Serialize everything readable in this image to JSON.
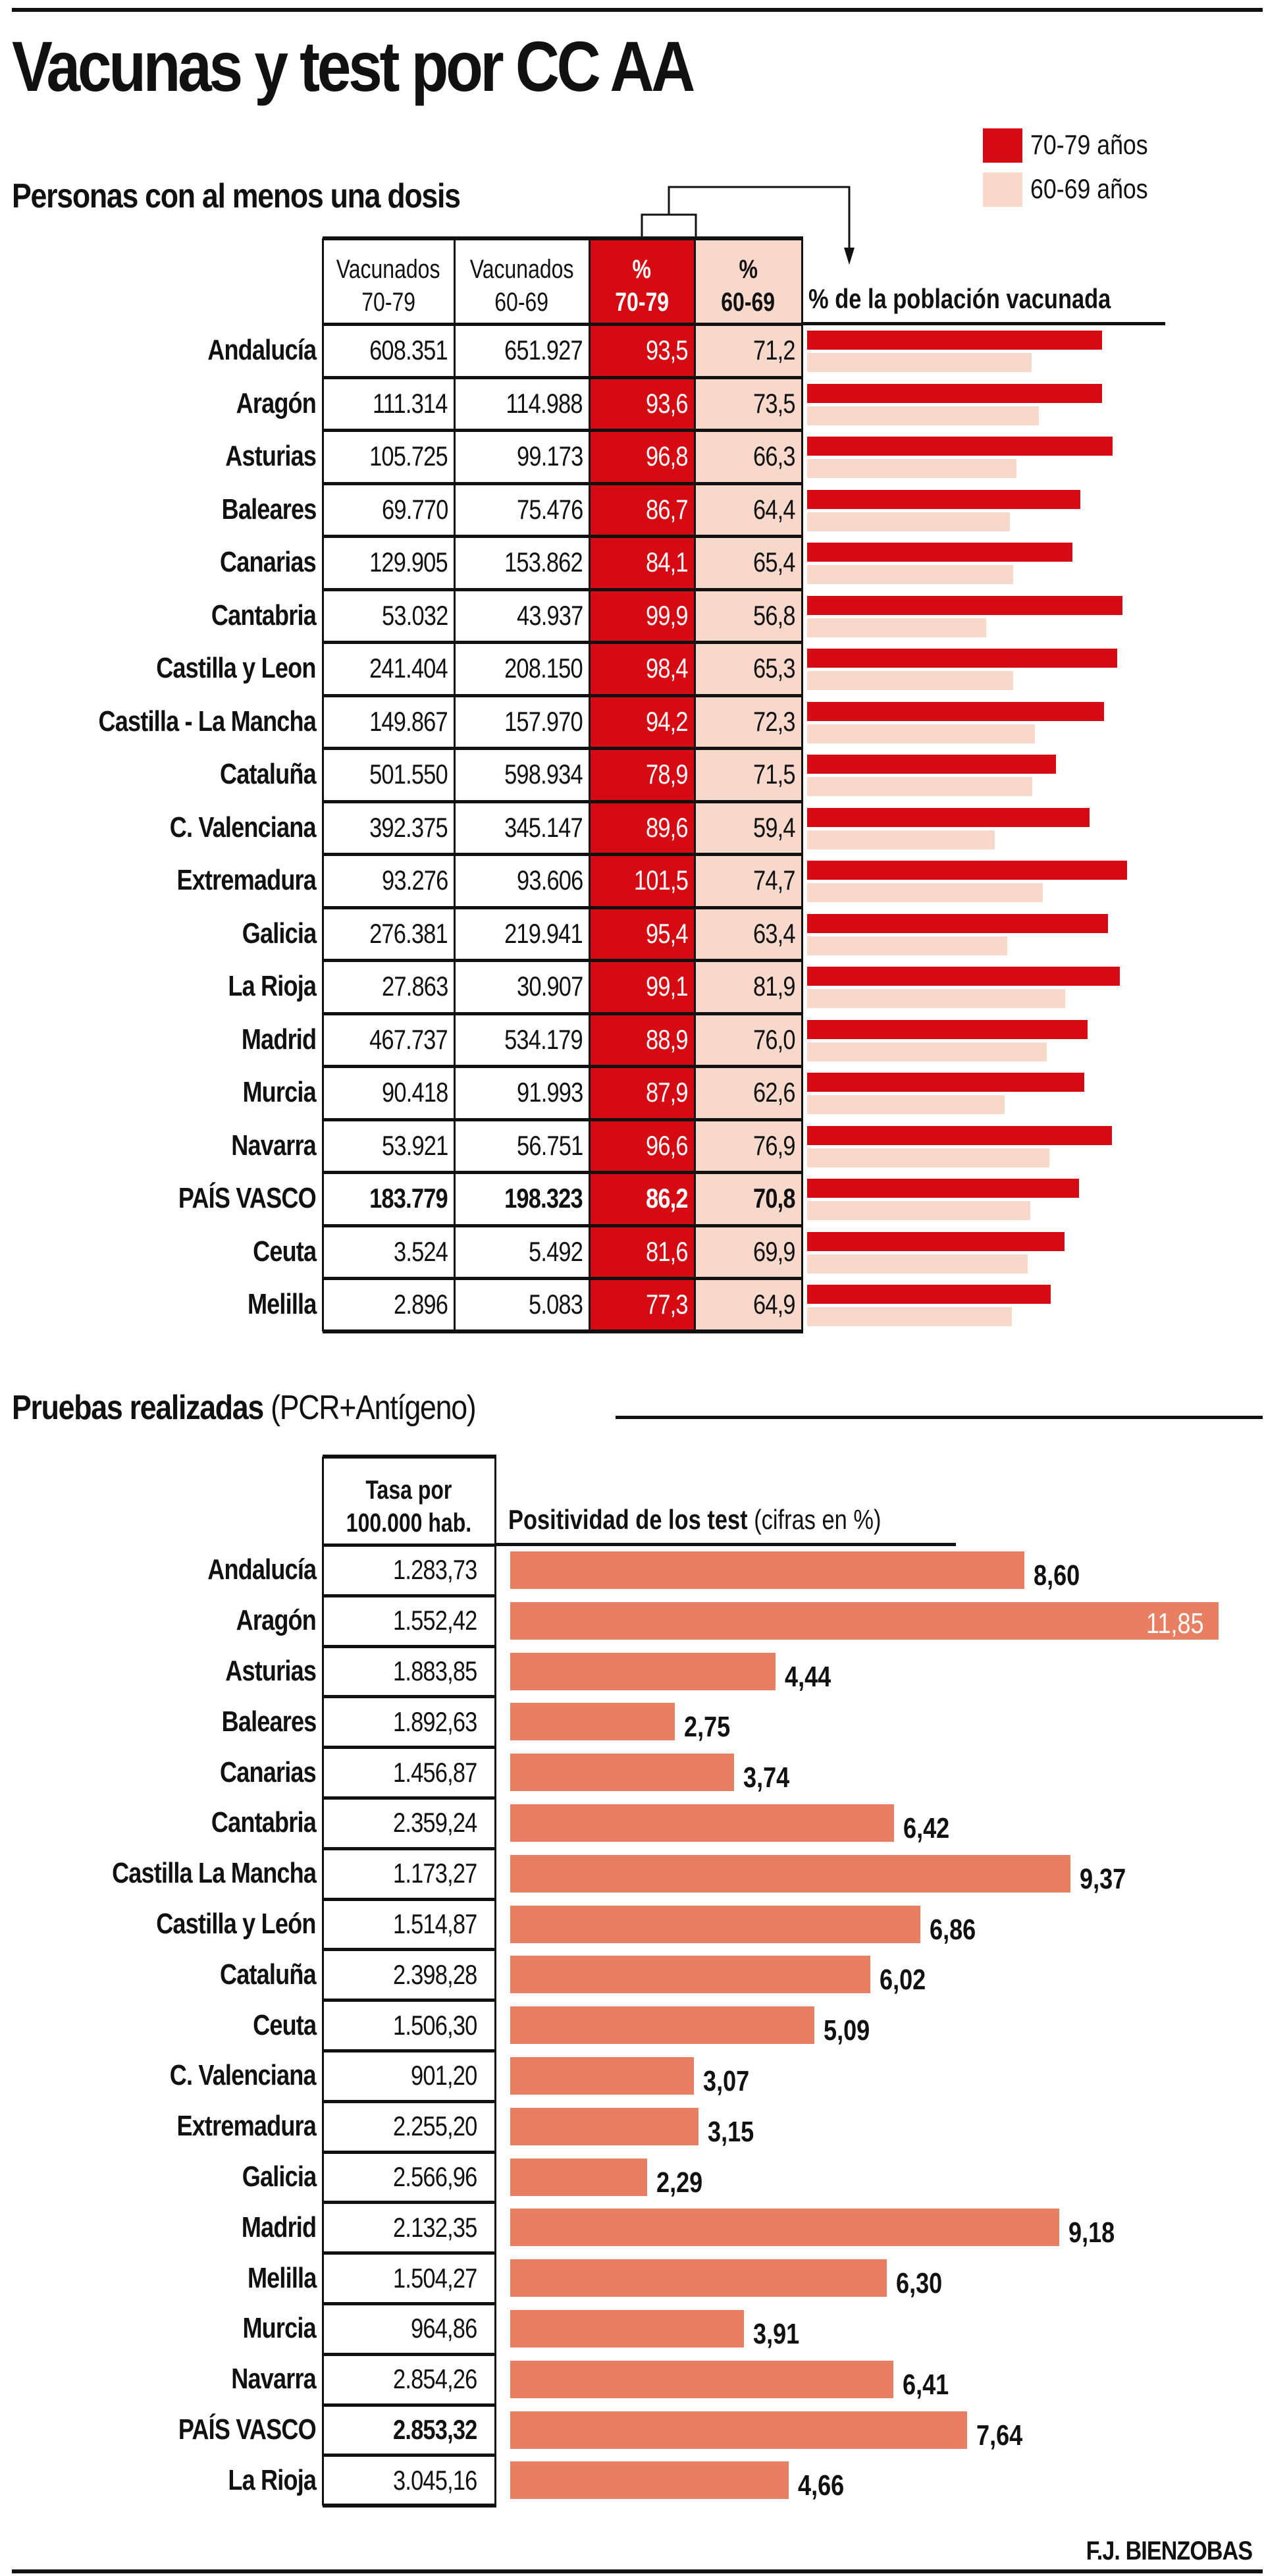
{
  "title": "Vacunas y test por CC AA",
  "credit": "F.J. BIENZOBAS",
  "colors": {
    "red": "#D50A12",
    "pink": "#F7D8CB",
    "salmon": "#E87E62",
    "text": "#111111"
  },
  "legend": [
    {
      "label": "70-79 años",
      "color": "#D50A12"
    },
    {
      "label": "60-69 años",
      "color": "#F7D8CB"
    }
  ],
  "chart_data": [
    {
      "type": "table",
      "title": "Personas con al menos una dosis",
      "columns": [
        {
          "line1": "Vacunados",
          "line2": "70-79"
        },
        {
          "line1": "Vacunados",
          "line2": "60-69"
        },
        {
          "line1": "%",
          "line2": "70-79"
        },
        {
          "line1": "%",
          "line2": "60-69"
        }
      ],
      "bar_header": "% de la población vacunada",
      "series": [
        {
          "name": "70-79 años",
          "color": "#D50A12"
        },
        {
          "name": "60-69 años",
          "color": "#F7D8CB"
        }
      ],
      "rows": [
        {
          "region": "Andalucía",
          "vac_70_79": "608.351",
          "vac_60_69": "651.927",
          "pct_70_79": 93.5,
          "pct_60_69": 71.2,
          "bold": false
        },
        {
          "region": "Aragón",
          "vac_70_79": "111.314",
          "vac_60_69": "114.988",
          "pct_70_79": 93.6,
          "pct_60_69": 73.5,
          "bold": false
        },
        {
          "region": "Asturias",
          "vac_70_79": "105.725",
          "vac_60_69": "99.173",
          "pct_70_79": 96.8,
          "pct_60_69": 66.3,
          "bold": false
        },
        {
          "region": "Baleares",
          "vac_70_79": "69.770",
          "vac_60_69": "75.476",
          "pct_70_79": 86.7,
          "pct_60_69": 64.4,
          "bold": false
        },
        {
          "region": "Canarias",
          "vac_70_79": "129.905",
          "vac_60_69": "153.862",
          "pct_70_79": 84.1,
          "pct_60_69": 65.4,
          "bold": false
        },
        {
          "region": "Cantabria",
          "vac_70_79": "53.032",
          "vac_60_69": "43.937",
          "pct_70_79": 99.9,
          "pct_60_69": 56.8,
          "bold": false
        },
        {
          "region": "Castilla y Leon",
          "vac_70_79": "241.404",
          "vac_60_69": "208.150",
          "pct_70_79": 98.4,
          "pct_60_69": 65.3,
          "bold": false
        },
        {
          "region": "Castilla - La Mancha",
          "vac_70_79": "149.867",
          "vac_60_69": "157.970",
          "pct_70_79": 94.2,
          "pct_60_69": 72.3,
          "bold": false
        },
        {
          "region": "Cataluña",
          "vac_70_79": "501.550",
          "vac_60_69": "598.934",
          "pct_70_79": 78.9,
          "pct_60_69": 71.5,
          "bold": false
        },
        {
          "region": "C. Valenciana",
          "vac_70_79": "392.375",
          "vac_60_69": "345.147",
          "pct_70_79": 89.6,
          "pct_60_69": 59.4,
          "bold": false
        },
        {
          "region": "Extremadura",
          "vac_70_79": "93.276",
          "vac_60_69": "93.606",
          "pct_70_79": 101.5,
          "pct_60_69": 74.7,
          "bold": false
        },
        {
          "region": "Galicia",
          "vac_70_79": "276.381",
          "vac_60_69": "219.941",
          "pct_70_79": 95.4,
          "pct_60_69": 63.4,
          "bold": false
        },
        {
          "region": "La Rioja",
          "vac_70_79": "27.863",
          "vac_60_69": "30.907",
          "pct_70_79": 99.1,
          "pct_60_69": 81.9,
          "bold": false
        },
        {
          "region": "Madrid",
          "vac_70_79": "467.737",
          "vac_60_69": "534.179",
          "pct_70_79": 88.9,
          "pct_60_69": 76.0,
          "bold": false
        },
        {
          "region": "Murcia",
          "vac_70_79": "90.418",
          "vac_60_69": "91.993",
          "pct_70_79": 87.9,
          "pct_60_69": 62.6,
          "bold": false
        },
        {
          "region": "Navarra",
          "vac_70_79": "53.921",
          "vac_60_69": "56.751",
          "pct_70_79": 96.6,
          "pct_60_69": 76.9,
          "bold": false
        },
        {
          "region": "PAÍS VASCO",
          "vac_70_79": "183.779",
          "vac_60_69": "198.323",
          "pct_70_79": 86.2,
          "pct_60_69": 70.8,
          "bold": true
        },
        {
          "region": "Ceuta",
          "vac_70_79": "3.524",
          "vac_60_69": "5.492",
          "pct_70_79": 81.6,
          "pct_60_69": 69.9,
          "bold": false
        },
        {
          "region": "Melilla",
          "vac_70_79": "2.896",
          "vac_60_69": "5.083",
          "pct_70_79": 77.3,
          "pct_60_69": 64.9,
          "bold": false
        }
      ]
    },
    {
      "type": "bar",
      "title": "Pruebas realizadas",
      "title_suffix": "(PCR+Antígeno)",
      "rate_header": {
        "line1": "Tasa por",
        "line2": "100.000 hab."
      },
      "bar_header": "Positividad de los test",
      "bar_header_suffix": "(cifras en %)",
      "rows": [
        {
          "region": "Andalucía",
          "rate": "1.283,73",
          "positivity": 8.6,
          "label": "8,60",
          "bold": false
        },
        {
          "region": "Aragón",
          "rate": "1.552,42",
          "positivity": 11.85,
          "label": "11,85",
          "bold": false,
          "label_inside": true
        },
        {
          "region": "Asturias",
          "rate": "1.883,85",
          "positivity": 4.44,
          "label": "4,44",
          "bold": false
        },
        {
          "region": "Baleares",
          "rate": "1.892,63",
          "positivity": 2.75,
          "label": "2,75",
          "bold": false
        },
        {
          "region": "Canarias",
          "rate": "1.456,87",
          "positivity": 3.74,
          "label": "3,74",
          "bold": false
        },
        {
          "region": "Cantabria",
          "rate": "2.359,24",
          "positivity": 6.42,
          "label": "6,42",
          "bold": false
        },
        {
          "region": "Castilla La Mancha",
          "rate": "1.173,27",
          "positivity": 9.37,
          "label": "9,37",
          "bold": false
        },
        {
          "region": "Castilla y León",
          "rate": "1.514,87",
          "positivity": 6.86,
          "label": "6,86",
          "bold": false
        },
        {
          "region": "Cataluña",
          "rate": "2.398,28",
          "positivity": 6.02,
          "label": "6,02",
          "bold": false
        },
        {
          "region": "Ceuta",
          "rate": "1.506,30",
          "positivity": 5.09,
          "label": "5,09",
          "bold": false
        },
        {
          "region": "C. Valenciana",
          "rate": "901,20",
          "positivity": 3.07,
          "label": "3,07",
          "bold": false
        },
        {
          "region": "Extremadura",
          "rate": "2.255,20",
          "positivity": 3.15,
          "label": "3,15",
          "bold": false
        },
        {
          "region": "Galicia",
          "rate": "2.566,96",
          "positivity": 2.29,
          "label": "2,29",
          "bold": false
        },
        {
          "region": "Madrid",
          "rate": "2.132,35",
          "positivity": 9.18,
          "label": "9,18",
          "bold": false
        },
        {
          "region": "Melilla",
          "rate": "1.504,27",
          "positivity": 6.3,
          "label": "6,30",
          "bold": false
        },
        {
          "region": "Murcia",
          "rate": "964,86",
          "positivity": 3.91,
          "label": "3,91",
          "bold": false
        },
        {
          "region": "Navarra",
          "rate": "2.854,26",
          "positivity": 6.41,
          "label": "6,41",
          "bold": false
        },
        {
          "region": "PAÍS VASCO",
          "rate": "2.853,32",
          "positivity": 7.64,
          "label": "7,64",
          "bold": true
        },
        {
          "region": "La Rioja",
          "rate": "3.045,16",
          "positivity": 4.66,
          "label": "4,66",
          "bold": false
        }
      ]
    }
  ]
}
